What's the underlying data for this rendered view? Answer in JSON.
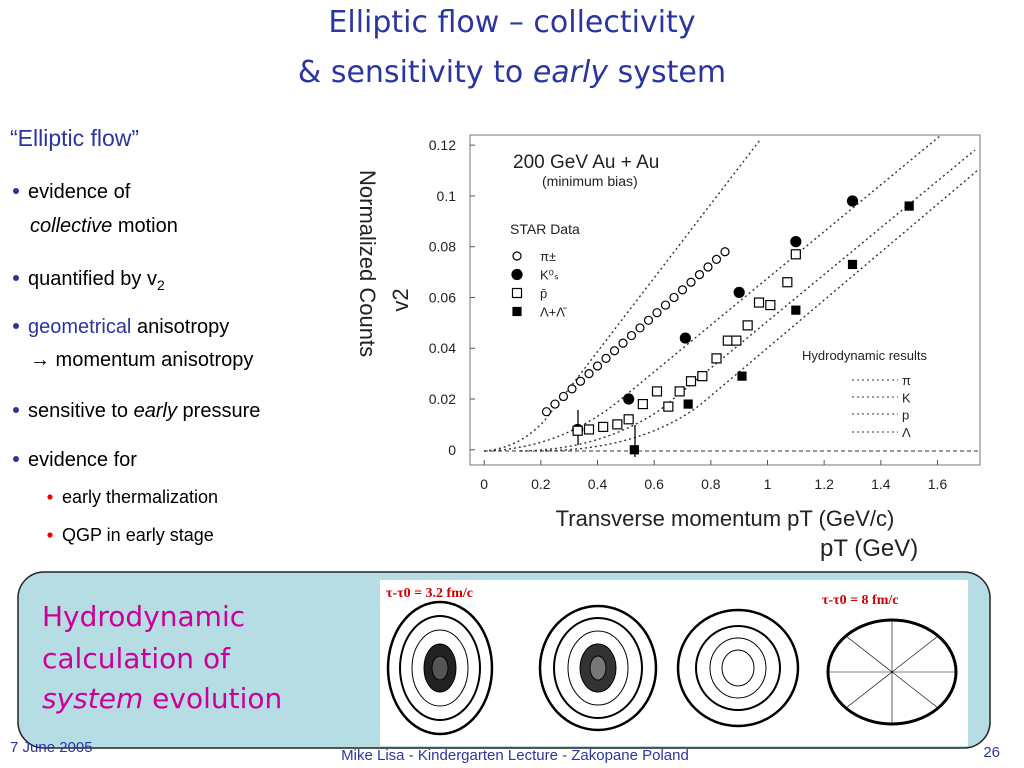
{
  "title": {
    "line1": "Elliptic flow – collectivity",
    "line2": [
      "& sensitivity to",
      "early",
      "system"
    ]
  },
  "heading": "“Elliptic flow”",
  "bullets": [
    {
      "line1": "evidence of",
      "line2": [
        "collective",
        "motion"
      ]
    },
    {
      "text": "quantified by v",
      "sub": "2"
    },
    {
      "parts": [
        "geometrical",
        "anisotropy"
      ],
      "line2": "→ momentum anisotropy"
    },
    {
      "parts": [
        "sensitive to",
        "early",
        "pressure"
      ]
    },
    {
      "text": "evidence for",
      "subbullets": [
        "early thermalization",
        "QGP in early stage"
      ]
    }
  ],
  "background_text": [
    "Normalized Counts",
    "pT (GeV)"
  ],
  "chart_data": {
    "type": "scatter",
    "title": "200 GeV Au + Au",
    "subtitle": "(minimum bias)",
    "legend_title": "STAR Data",
    "x_label": "Transverse momentum pT (GeV/c)",
    "y_label": "v2",
    "xlim": [
      -0.05,
      1.75
    ],
    "ylim": [
      -0.006,
      0.124
    ],
    "xticks": [
      0,
      0.2,
      0.4,
      0.6,
      0.8,
      1,
      1.2,
      1.4,
      1.6
    ],
    "yticks": [
      0,
      0.02,
      0.04,
      0.06,
      0.08,
      0.1,
      0.12
    ],
    "annotation": {
      "title": "Hydrodynamic results",
      "items": [
        "π",
        "K",
        "p",
        "Λ"
      ]
    },
    "series": [
      {
        "name": "π±",
        "marker": "open-circle",
        "color": "#000000",
        "x": [
          0.22,
          0.25,
          0.28,
          0.31,
          0.34,
          0.37,
          0.4,
          0.43,
          0.46,
          0.49,
          0.52,
          0.55,
          0.58,
          0.61,
          0.64,
          0.67,
          0.7,
          0.73,
          0.76,
          0.79,
          0.82,
          0.85
        ],
        "values": [
          0.015,
          0.018,
          0.021,
          0.024,
          0.027,
          0.03,
          0.033,
          0.036,
          0.039,
          0.042,
          0.045,
          0.048,
          0.051,
          0.054,
          0.057,
          0.06,
          0.063,
          0.066,
          0.069,
          0.072,
          0.075,
          0.078
        ]
      },
      {
        "name": "K⁰ₛ",
        "marker": "filled-circle",
        "color": "#000000",
        "x": [
          0.33,
          0.51,
          0.71,
          0.9,
          1.1,
          1.3
        ],
        "values": [
          0.008,
          0.02,
          0.044,
          0.062,
          0.082,
          0.098
        ]
      },
      {
        "name": "p̄",
        "marker": "open-square",
        "color": "#000000",
        "x": [
          0.33,
          0.37,
          0.42,
          0.47,
          0.51,
          0.56,
          0.61,
          0.65,
          0.69,
          0.73,
          0.77,
          0.82,
          0.86,
          0.89,
          0.93,
          0.97,
          1.01,
          1.07,
          1.1
        ],
        "values": [
          0.0075,
          0.008,
          0.009,
          0.01,
          0.012,
          0.018,
          0.023,
          0.017,
          0.023,
          0.027,
          0.029,
          0.036,
          0.043,
          0.043,
          0.049,
          0.058,
          0.057,
          0.066,
          0.077
        ]
      },
      {
        "name": "Λ+Λ̄",
        "marker": "filled-square",
        "color": "#000000",
        "x": [
          0.53,
          0.72,
          0.91,
          1.1,
          1.3,
          1.5
        ],
        "values": [
          0.0,
          0.018,
          0.029,
          0.055,
          0.073,
          0.096
        ]
      }
    ]
  },
  "box": {
    "lines": [
      "Hydrodynamic",
      "calculation of"
    ],
    "line3": [
      "system",
      "evolution"
    ],
    "labels": [
      "τ-τ0 = 3.2 fm/c",
      "τ-τ0 = 8 fm/c"
    ]
  },
  "footer": {
    "date": "7 June 2005",
    "center": "Mike Lisa - Kindergarten Lecture - Zakopane Poland",
    "page": "26"
  }
}
